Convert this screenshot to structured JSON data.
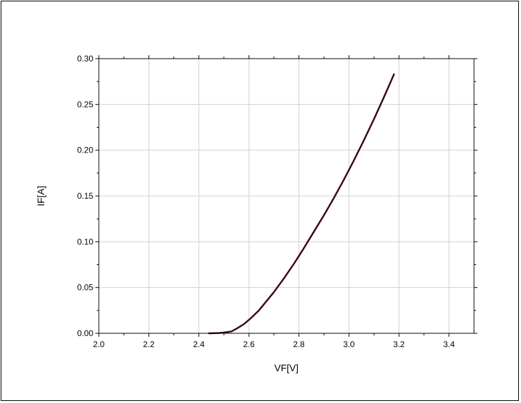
{
  "chart_data": {
    "type": "line",
    "title": "",
    "xlabel": "VF[V]",
    "ylabel": "IF[A]",
    "xlim": [
      2.0,
      3.5
    ],
    "ylim": [
      0.0,
      0.3
    ],
    "x_ticks": [
      "2.0",
      "2.2",
      "2.4",
      "2.6",
      "2.8",
      "3.0",
      "3.2",
      "3.4"
    ],
    "y_ticks": [
      "0.00",
      "0.05",
      "0.10",
      "0.15",
      "0.20",
      "0.25",
      "0.30"
    ],
    "grid": true,
    "legend": "none",
    "line_color": "#3a0a10",
    "grid_color": "#d0d0d0",
    "series": [
      {
        "x": [
          2.44,
          2.48,
          2.5,
          2.53,
          2.55,
          2.58,
          2.61,
          2.64,
          2.67,
          2.7,
          2.74,
          2.78,
          2.82,
          2.86,
          2.9,
          2.94,
          2.98,
          3.02,
          3.06,
          3.1,
          3.14,
          3.18
        ],
        "y": [
          0.0,
          0.0003,
          0.0008,
          0.002,
          0.005,
          0.01,
          0.017,
          0.025,
          0.035,
          0.045,
          0.06,
          0.076,
          0.093,
          0.111,
          0.129,
          0.148,
          0.168,
          0.189,
          0.211,
          0.234,
          0.258,
          0.283
        ]
      }
    ]
  }
}
